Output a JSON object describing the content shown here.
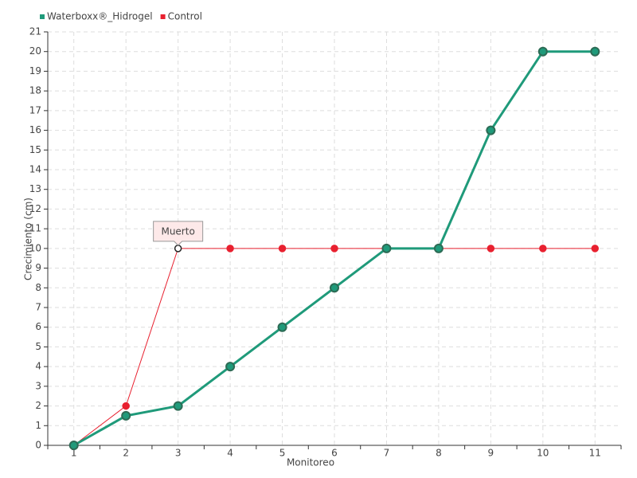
{
  "chart_data": {
    "type": "line",
    "x_label": "Monitoreo",
    "y_label": "Crecimiento (cm)",
    "categories": [
      "1",
      "2",
      "3",
      "4",
      "5",
      "6",
      "7",
      "8",
      "9",
      "10",
      "11"
    ],
    "series": [
      {
        "name": "Waterboxx®_Hidrogel",
        "color": "#1f9a7a",
        "values": [
          0,
          1.5,
          2,
          4,
          6,
          8,
          10,
          10,
          16,
          20,
          20
        ]
      },
      {
        "name": "Control",
        "color": "#e8202f",
        "values": [
          0,
          2,
          10,
          10,
          10,
          10,
          10,
          10,
          10,
          10,
          10
        ]
      }
    ],
    "annotation": {
      "text": "Muerto",
      "x": "3",
      "y": 10
    },
    "ylim": [
      0,
      21
    ],
    "yticks": [
      0,
      1,
      2,
      3,
      4,
      5,
      6,
      7,
      8,
      9,
      10,
      11,
      12,
      13,
      14,
      15,
      16,
      17,
      18,
      19,
      20,
      21
    ],
    "grid": true,
    "legend": "top-left"
  }
}
